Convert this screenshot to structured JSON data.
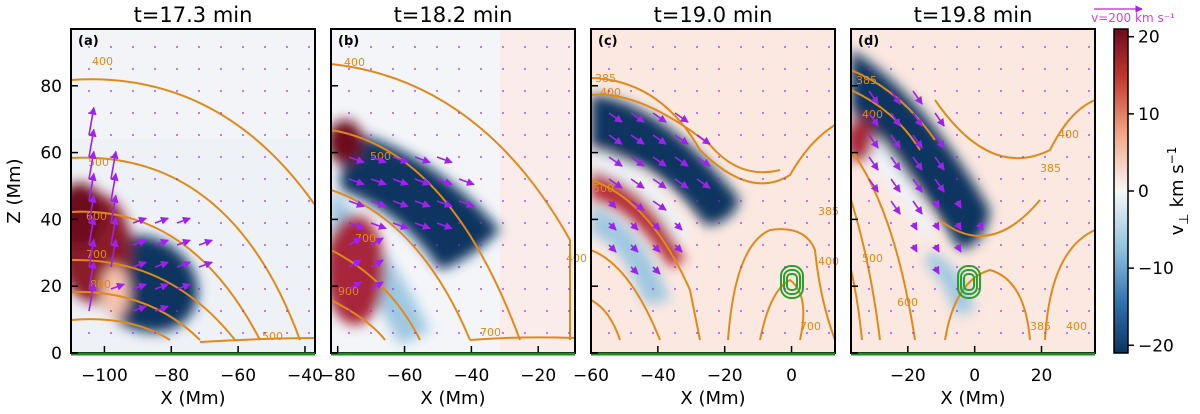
{
  "chart_data": {
    "type": "heatmap",
    "description_axes": {
      "xlabel": "X (Mm)",
      "ylabel": "Z (Mm)",
      "ylim": [
        0,
        97
      ]
    },
    "colorbar": {
      "label": "v⊥ km s⁻¹",
      "label_main": "v",
      "label_sub": "⊥",
      "label_units": "km s",
      "label_exp": "−1",
      "range": [
        -21,
        21
      ],
      "ticks": [
        {
          "value": 20,
          "label": "20"
        },
        {
          "value": 10,
          "label": "10"
        },
        {
          "value": 0,
          "label": "0"
        },
        {
          "value": -10,
          "label": "−10"
        },
        {
          "value": -20,
          "label": "−20"
        }
      ],
      "colors": {
        "neg": "#0b3460",
        "mid": "#f7f7f7",
        "pos": "#6d0a1f"
      }
    },
    "velocity_reference": "v=200 km s⁻¹",
    "y_ticks": [
      0,
      20,
      40,
      60,
      80
    ],
    "panels": [
      {
        "id": "a",
        "panel_label": "(a)",
        "title": "t=17.3 min",
        "xlim": [
          -110,
          -37
        ],
        "x_ticks": [
          {
            "v": -100,
            "t": "−100"
          },
          {
            "v": -80,
            "t": "−80"
          },
          {
            "v": -60,
            "t": "−60"
          },
          {
            "v": -40,
            "t": "−40"
          }
        ],
        "contour_labels": [
          "400",
          "500",
          "600",
          "700",
          "800",
          "500"
        ]
      },
      {
        "id": "b",
        "panel_label": "(b)",
        "title": "t=18.2 min",
        "xlim": [
          -82,
          -9
        ],
        "x_ticks": [
          {
            "v": -80,
            "t": "−80"
          },
          {
            "v": -60,
            "t": "−60"
          },
          {
            "v": -40,
            "t": "−40"
          },
          {
            "v": -20,
            "t": "−20"
          }
        ],
        "contour_labels": [
          "400",
          "500",
          "700",
          "900",
          "400",
          "700"
        ]
      },
      {
        "id": "c",
        "panel_label": "(c)",
        "title": "t=19.0 min",
        "xlim": [
          -60,
          13
        ],
        "x_ticks": [
          {
            "v": -60,
            "t": "−60"
          },
          {
            "v": -40,
            "t": "−40"
          },
          {
            "v": -20,
            "t": "−20"
          },
          {
            "v": 0,
            "t": "0"
          }
        ],
        "contour_labels": [
          "385",
          "400",
          "500",
          "385",
          "400",
          "700"
        ]
      },
      {
        "id": "d",
        "panel_label": "(d)",
        "title": "t=19.8 min",
        "xlim": [
          -37,
          36
        ],
        "x_ticks": [
          {
            "v": -20,
            "t": "−20"
          },
          {
            "v": 0,
            "t": "0"
          },
          {
            "v": 20,
            "t": "20"
          }
        ],
        "contour_labels": [
          "385",
          "400",
          "385",
          "400",
          "500",
          "600",
          "385",
          "400"
        ]
      }
    ]
  }
}
